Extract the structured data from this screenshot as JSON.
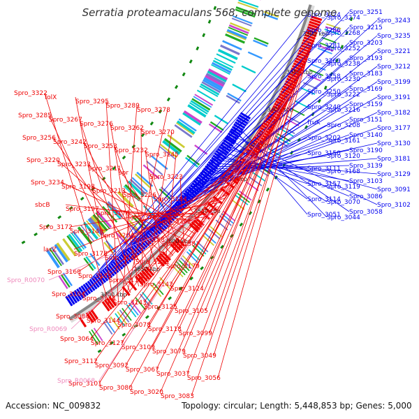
{
  "title": "Serratia proteamaculans 568, complete genome",
  "accession_label": "Accession: NC_009832",
  "summary_label": "Topology: circular; Length: 5,448,853 bp; Genes: 5,000",
  "colors": {
    "forward": "#ee0000",
    "reverse": "#0000ee",
    "pseudo": "#ee88bb",
    "backbone": "#888888",
    "marker": "#118811",
    "feature_band": [
      "#00cccc",
      "#22aa22",
      "#cc44cc",
      "#cccc33",
      "#7777cc",
      "#3399ff"
    ]
  },
  "kbp_ticks": [
    "3700 kbp",
    "3650 kbp",
    "3600 kbp",
    "3550 kbp",
    "3500 kbp",
    "3450 kbp",
    "3400 kbp",
    "3350 kbp",
    "3300 kbp"
  ],
  "reverse_labels": [
    "Spro_3251",
    "Spro_3224",
    "Spro_3274",
    "Spro_3243",
    "Spro_3215",
    "Spro_3286",
    "Spro_3268",
    "Spro_3235",
    "Spro_3203",
    "Spro_3281",
    "Spro_3252",
    "Spro_3221",
    "Spro_3193",
    "Spro_3269",
    "Spro_3238",
    "Spro_3212",
    "Spro_3183",
    "Spro_3258",
    "Spro_3230",
    "Spro_3199",
    "Spro_3169",
    "Spro_3250",
    "Spro_3222",
    "Spro_3191",
    "Spro_3159",
    "Spro_3240",
    "Spro_3216",
    "Spro_3182",
    "Spro_3151",
    "fruK",
    "Spro_3208",
    "Spro_3177",
    "Spro_3140",
    "Spro_3202",
    "Spro_3161",
    "Spro_3130",
    "Spro_3190",
    "Spro_3150",
    "Spro_3120",
    "Spro_3181",
    "Spro_3139",
    "Spro_3111",
    "Spro_3168",
    "Spro_3129",
    "Spro_3103",
    "Spro_3157",
    "Spro_3119",
    "Spro_3091",
    "Spro_3086",
    "Spro_3114",
    "Spro_3070",
    "Spro_3102",
    "Spro_3058",
    "Spro_3051",
    "Spro_3044"
  ],
  "forward_labels": [
    "Spro_3322",
    "folX",
    "Spro_3295",
    "Spro_3289",
    "Spro_3278",
    "Spro_3285",
    "Spro_3267",
    "Spro_3276",
    "Spro_3262",
    "Spro_3270",
    "Spro_3256",
    "Spro_3242",
    "Spro_3253",
    "Spro_3232",
    "Spro_3245",
    "Spro_3220",
    "Spro_3233",
    "Spro_3211",
    "spr",
    "Spro_3223",
    "Spro_3234",
    "Spro_3198",
    "Spro_3213",
    "Spro_3226",
    "Spro_3184",
    "sbcB",
    "Spro_3197",
    "Spro_3176",
    "Spro_3192",
    "Spro_3162",
    "Spro_3172",
    "Spro_3149",
    "Spro_3204",
    "Spro_3158",
    "Spro_3138",
    "lacZ",
    "Spro_3178",
    "Spro_3148",
    "Spro_3126",
    "Spro_3179",
    "Spro_3160",
    "Spro_3135",
    "Spro_3115",
    "Spro_3142",
    "Spro_3124",
    "Spro_3104",
    "Spro_3174",
    "Spro_3143",
    "Spro_3125",
    "Spro_3105",
    "Spro_3084",
    "Spro_3144",
    "Spro_3078",
    "Spro_3118",
    "Spro_3099",
    "Spro_3064",
    "Spro_3127",
    "Spro_3109",
    "Spro_3079",
    "Spro_3049",
    "Spro_3112",
    "Spro_3092",
    "Spro_3067",
    "Spro_3037",
    "Spro_3056",
    "Spro_3101",
    "Spro_3080",
    "Spro_3020",
    "Spro_3083"
  ],
  "pseudo_labels": [
    "Spro_R0070",
    "Spro_R0069",
    "Spro_R0068"
  ]
}
